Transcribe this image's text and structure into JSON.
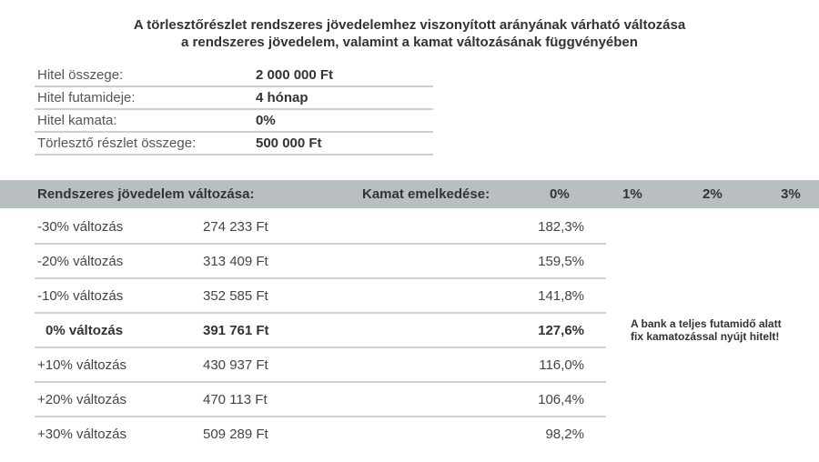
{
  "title": {
    "line1": "A törlesztőrészlet rendszeres jövedelemhez viszonyított arányának várható változása",
    "line2": "a rendszeres jövedelem, valamint a kamat változásának függvényében"
  },
  "info": [
    {
      "label": "Hitel összege:",
      "value": "2 000 000 Ft"
    },
    {
      "label": "Hitel futamideje:",
      "value": "4 hónap"
    },
    {
      "label": "Hitel kamata:",
      "value": "0%"
    },
    {
      "label": "Törlesztő részlet összege:",
      "value": "500 000 Ft"
    }
  ],
  "header": {
    "income_change": "Rendszeres jövedelem változása:",
    "interest_rise": "Kamat emelkedése:",
    "rates": [
      "0%",
      "1%",
      "2%",
      "3%"
    ]
  },
  "rows": [
    {
      "change": "-30% változás",
      "income": "274 233 Ft",
      "ratio": "182,3%"
    },
    {
      "change": "-20% változás",
      "income": "313 409 Ft",
      "ratio": "159,5%"
    },
    {
      "change": "-10% változás",
      "income": "352 585 Ft",
      "ratio": "141,8%"
    },
    {
      "change": "0% változás",
      "income": "391 761 Ft",
      "ratio": "127,6%"
    },
    {
      "change": "+10% változás",
      "income": "430 937 Ft",
      "ratio": "116,0%"
    },
    {
      "change": "+20% változás",
      "income": "470 113 Ft",
      "ratio": "106,4%"
    },
    {
      "change": "+30% változás",
      "income": "509 289 Ft",
      "ratio": "98,2%"
    }
  ],
  "note": {
    "line1": "A bank a teljes futamidő alatt",
    "line2": "fix kamatozással nyújt hitelt!"
  }
}
